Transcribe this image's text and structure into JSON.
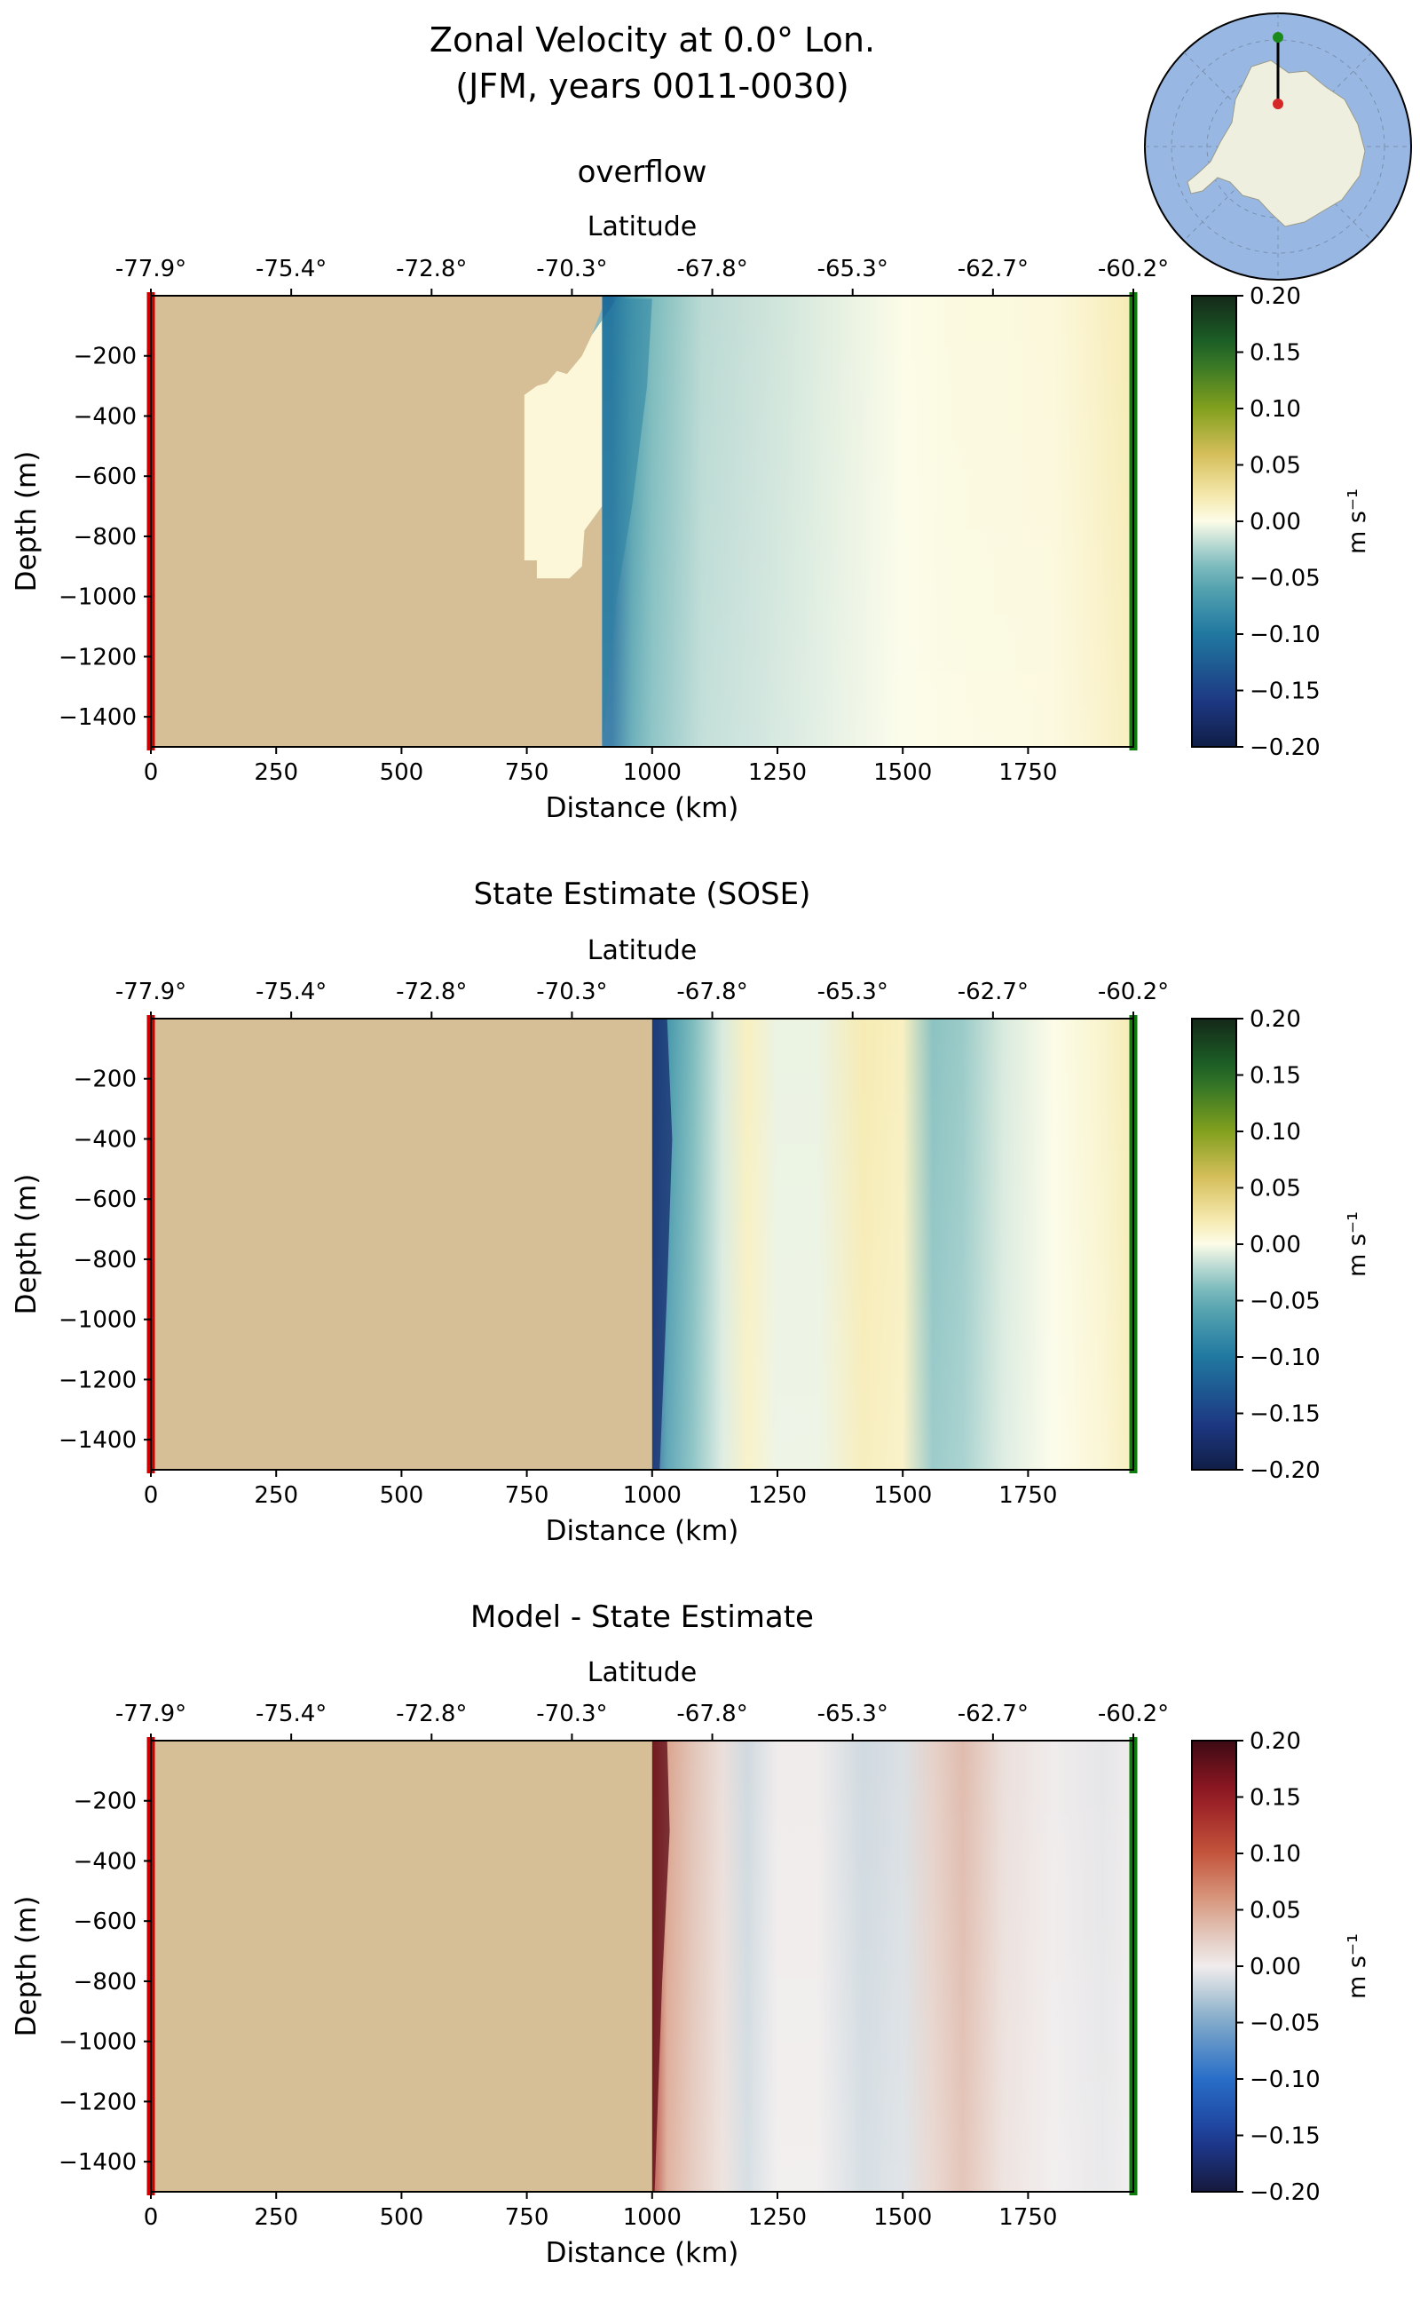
{
  "figure": {
    "title_line1": "Zonal Velocity at 0.0° Lon.",
    "title_line2": "(JFM, years 0011-0030)"
  },
  "inset_map": {
    "region": "Antarctica",
    "marker_colors": {
      "start": "#d62728",
      "end": "#1a8a1a"
    },
    "ocean_color": "#98b8e3",
    "land_color": "#efefdf"
  },
  "colors": {
    "land_mask": "#d6be96",
    "start_line": "#cc0000",
    "end_line": "#0e7a0e"
  },
  "chart_data": [
    {
      "type": "heatmap",
      "title": "overflow",
      "xlabel": "Distance (km)",
      "ylabel": "Depth (m)",
      "top_axis_label": "Latitude",
      "top_ticks": [
        "-77.9°",
        "-75.4°",
        "-72.8°",
        "-70.3°",
        "-67.8°",
        "-65.3°",
        "-62.7°",
        "-60.2°"
      ],
      "xlim": [
        0,
        1960
      ],
      "ylim": [
        -1500,
        0
      ],
      "xticks": [
        0,
        250,
        500,
        750,
        1000,
        1250,
        1500,
        1750
      ],
      "yticks": [
        -200,
        -400,
        -600,
        -800,
        -1000,
        -1200,
        -1400
      ],
      "colorbar": {
        "label": "m s⁻¹",
        "range": [
          -0.2,
          0.2
        ],
        "ticks": [
          "0.20",
          "0.15",
          "0.10",
          "0.05",
          "0.00",
          "−0.05",
          "−0.10",
          "−0.15",
          "−0.20"
        ],
        "colormap": "delta"
      },
      "land_edge_km": 900,
      "columns": [
        {
          "x": 920,
          "v": -0.11
        },
        {
          "x": 960,
          "v": -0.06
        },
        {
          "x": 1000,
          "v": -0.04
        },
        {
          "x": 1100,
          "v": -0.02
        },
        {
          "x": 1200,
          "v": -0.015
        },
        {
          "x": 1300,
          "v": -0.01
        },
        {
          "x": 1400,
          "v": -0.005
        },
        {
          "x": 1500,
          "v": 0.0
        },
        {
          "x": 1600,
          "v": 0.003
        },
        {
          "x": 1700,
          "v": 0.004
        },
        {
          "x": 1800,
          "v": 0.005
        },
        {
          "x": 1880,
          "v": 0.012
        },
        {
          "x": 1960,
          "v": 0.02
        }
      ]
    },
    {
      "type": "heatmap",
      "title": "State Estimate (SOSE)",
      "xlabel": "Distance (km)",
      "ylabel": "Depth (m)",
      "top_axis_label": "Latitude",
      "top_ticks": [
        "-77.9°",
        "-75.4°",
        "-72.8°",
        "-70.3°",
        "-67.8°",
        "-65.3°",
        "-62.7°",
        "-60.2°"
      ],
      "xlim": [
        0,
        1960
      ],
      "ylim": [
        -1500,
        0
      ],
      "xticks": [
        0,
        250,
        500,
        750,
        1000,
        1250,
        1500,
        1750
      ],
      "yticks": [
        -200,
        -400,
        -600,
        -800,
        -1000,
        -1200,
        -1400
      ],
      "colorbar": {
        "label": "m s⁻¹",
        "range": [
          -0.2,
          0.2
        ],
        "ticks": [
          "0.20",
          "0.15",
          "0.10",
          "0.05",
          "0.00",
          "−0.05",
          "−0.10",
          "−0.15",
          "−0.20"
        ],
        "colormap": "delta"
      },
      "land_edge_km": 1000,
      "columns": [
        {
          "x": 1000,
          "v": -0.13
        },
        {
          "x": 1030,
          "v": -0.07
        },
        {
          "x": 1080,
          "v": -0.04
        },
        {
          "x": 1140,
          "v": -0.01
        },
        {
          "x": 1190,
          "v": 0.015
        },
        {
          "x": 1250,
          "v": -0.005
        },
        {
          "x": 1330,
          "v": -0.005
        },
        {
          "x": 1420,
          "v": 0.02
        },
        {
          "x": 1500,
          "v": 0.015
        },
        {
          "x": 1560,
          "v": -0.035
        },
        {
          "x": 1620,
          "v": -0.03
        },
        {
          "x": 1700,
          "v": -0.01
        },
        {
          "x": 1800,
          "v": 0.0
        },
        {
          "x": 1900,
          "v": 0.01
        },
        {
          "x": 1960,
          "v": 0.02
        }
      ]
    },
    {
      "type": "heatmap",
      "title": "Model - State Estimate",
      "xlabel": "Distance (km)",
      "ylabel": "Depth (m)",
      "top_axis_label": "Latitude",
      "top_ticks": [
        "-77.9°",
        "-75.4°",
        "-72.8°",
        "-70.3°",
        "-67.8°",
        "-65.3°",
        "-62.7°",
        "-60.2°"
      ],
      "xlim": [
        0,
        1960
      ],
      "ylim": [
        -1500,
        0
      ],
      "xticks": [
        0,
        250,
        500,
        750,
        1000,
        1250,
        1500,
        1750
      ],
      "yticks": [
        -200,
        -400,
        -600,
        -800,
        -1000,
        -1200,
        -1400
      ],
      "colorbar": {
        "label": "m s⁻¹",
        "range": [
          -0.2,
          0.2
        ],
        "ticks": [
          "0.20",
          "0.15",
          "0.10",
          "0.05",
          "0.00",
          "−0.05",
          "−0.10",
          "−0.15",
          "−0.20"
        ],
        "colormap": "balance"
      },
      "land_edge_km": 1000,
      "columns": [
        {
          "x": 1000,
          "v": 0.12
        },
        {
          "x": 1030,
          "v": 0.05
        },
        {
          "x": 1080,
          "v": 0.03
        },
        {
          "x": 1140,
          "v": 0.01
        },
        {
          "x": 1190,
          "v": -0.015
        },
        {
          "x": 1250,
          "v": 0.0
        },
        {
          "x": 1330,
          "v": 0.0
        },
        {
          "x": 1420,
          "v": -0.015
        },
        {
          "x": 1500,
          "v": -0.01
        },
        {
          "x": 1560,
          "v": 0.02
        },
        {
          "x": 1620,
          "v": 0.035
        },
        {
          "x": 1700,
          "v": 0.01
        },
        {
          "x": 1800,
          "v": 0.0
        },
        {
          "x": 1900,
          "v": -0.005
        },
        {
          "x": 1960,
          "v": 0.0
        }
      ]
    }
  ]
}
